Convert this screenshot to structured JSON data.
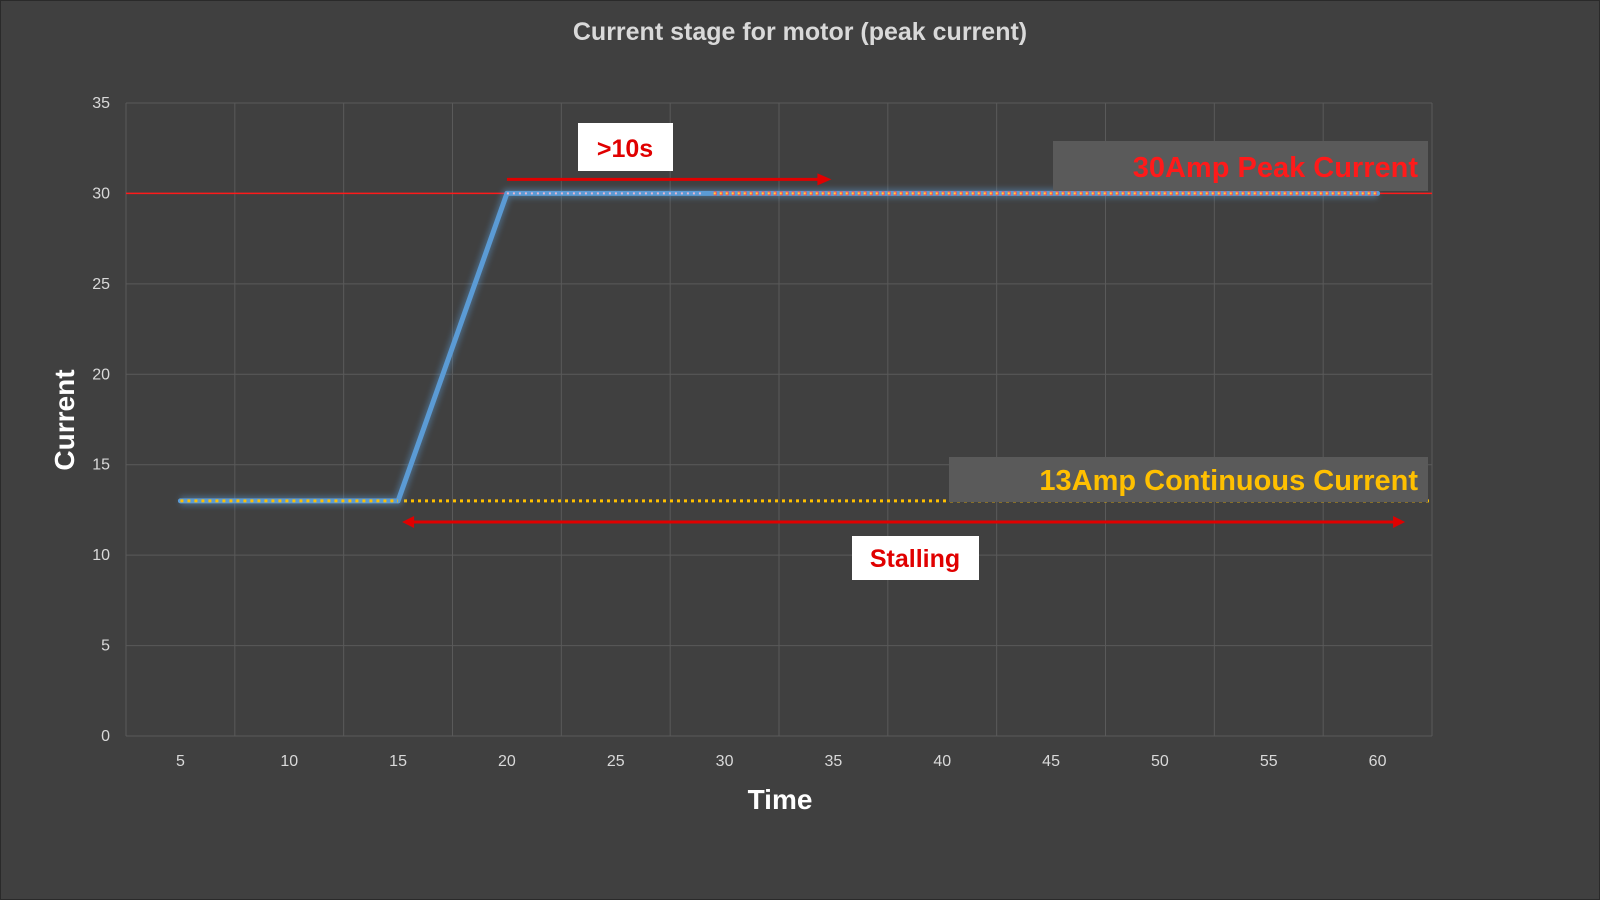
{
  "chart_data": {
    "type": "line",
    "title": "Current stage for motor (peak current)",
    "xlabel": "Time",
    "ylabel": "Current",
    "x_ticks": [
      5,
      10,
      15,
      20,
      25,
      30,
      35,
      40,
      45,
      50,
      55,
      60
    ],
    "y_ticks": [
      0,
      5,
      10,
      15,
      20,
      25,
      30,
      35
    ],
    "ylim": [
      0,
      35
    ],
    "grid": true,
    "series": [
      {
        "x": [
          5,
          10,
          15,
          20,
          25,
          30,
          35,
          40,
          45,
          50,
          55,
          60
        ],
        "values": [
          13,
          13,
          13,
          30,
          30,
          30,
          30,
          30,
          30,
          30,
          30,
          30
        ],
        "color": "#5b9bd5"
      }
    ],
    "reference_lines": [
      {
        "y": 30,
        "label": "30Amp Peak Current",
        "color": "#ff1a1a"
      },
      {
        "y": 13,
        "label": "13Amp Continuous Current",
        "color": "#ffc000"
      }
    ],
    "annotations": [
      {
        "text": ">10s",
        "x_start": 20,
        "x_end": 35,
        "color": "#e00000"
      },
      {
        "text": "Stalling",
        "x_start": 15,
        "x_end": 62,
        "color": "#e00000"
      }
    ]
  },
  "colors": {
    "background": "#404040",
    "grid": "#5a5a5a",
    "text": "#d9d9d9",
    "line": "#5b9bd5",
    "peak": "#ff1a1a",
    "continuous": "#ffc000",
    "label_box": "#5a5a5a"
  }
}
